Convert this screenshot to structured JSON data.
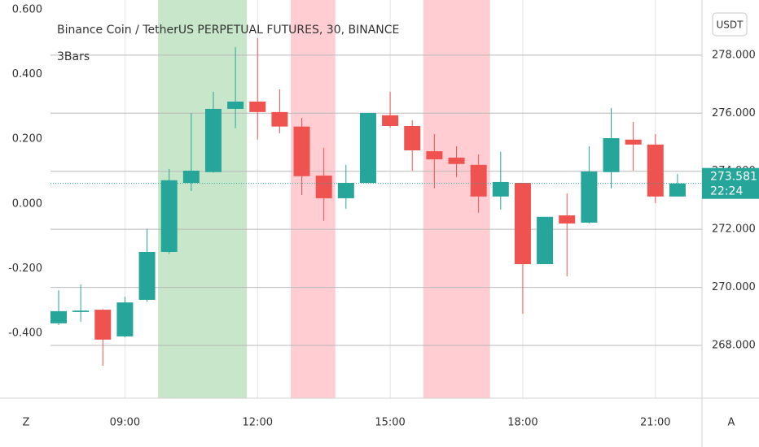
{
  "chart_data": {
    "type": "candlestick",
    "title": "Binance Coin / TetherUS PERPETUAL FUTURES, 30, BINANCE",
    "subtitle": "3Bars",
    "categories": [
      null,
      null,
      null,
      "09:00",
      null,
      null,
      null,
      null,
      null,
      "12:00",
      null,
      null,
      null,
      null,
      null,
      "15:00",
      null,
      null,
      null,
      null,
      null,
      "18:00",
      null,
      null,
      null,
      null,
      null,
      "21:00",
      null
    ],
    "series": [
      {
        "up_color": "#26a69a",
        "down_color": "#ef5350",
        "open": [
          268.76,
          269.15,
          269.23,
          268.31,
          269.57,
          271.22,
          273.6,
          273.97,
          276.15,
          276.4,
          276.04,
          275.54,
          273.85,
          273.07,
          273.6,
          275.93,
          275.56,
          274.69,
          274.47,
          274.22,
          273.13,
          273.6,
          270.8,
          272.48,
          272.23,
          273.97,
          275.09,
          274.92,
          273.13
        ],
        "high": [
          269.9,
          270.1,
          269.25,
          269.68,
          272.01,
          274.08,
          276.01,
          276.74,
          278.28,
          278.59,
          276.82,
          275.84,
          274.81,
          274.22,
          276.01,
          276.74,
          275.76,
          275.28,
          274.86,
          274.58,
          274.67,
          273.6,
          272.43,
          273.24,
          274.86,
          276.18,
          275.7,
          275.28,
          273.91
        ],
        "low": [
          268.7,
          268.81,
          267.3,
          268.28,
          269.5,
          271.15,
          273.32,
          273.95,
          275.48,
          275.09,
          275.31,
          273.18,
          272.29,
          272.71,
          273.6,
          275.5,
          274.02,
          273.41,
          273.8,
          272.57,
          272.68,
          269.09,
          270.8,
          270.38,
          272.2,
          273.41,
          274.02,
          272.9,
          273.13
        ],
        "close": [
          269.18,
          269.2,
          268.2,
          269.48,
          271.22,
          273.69,
          274.02,
          276.15,
          276.4,
          276.04,
          275.54,
          273.83,
          273.07,
          273.6,
          276.01,
          275.56,
          274.72,
          274.41,
          274.25,
          273.13,
          273.63,
          270.8,
          272.43,
          272.2,
          273.99,
          275.14,
          274.92,
          273.13,
          273.58
        ]
      }
    ],
    "bar_backgrounds": [
      null,
      null,
      null,
      null,
      null,
      "#c8e6c9",
      "#c8e6c9",
      "#c8e6c9",
      "#c8e6c9",
      null,
      null,
      "#ffcdd2",
      "#ffcdd2",
      null,
      null,
      null,
      null,
      "#ffcdd2",
      "#ffcdd2",
      "#ffcdd2",
      null,
      null,
      null,
      null,
      null,
      null,
      null,
      null,
      null
    ],
    "ylim": [
      266.18,
      279.9
    ],
    "yticks": [
      {
        "value": 268,
        "label": "268.000"
      },
      {
        "value": 270,
        "label": "270.000"
      },
      {
        "value": 272,
        "label": "272.000"
      },
      {
        "value": 274,
        "label": "274.000"
      },
      {
        "value": 276,
        "label": "276.000"
      },
      {
        "value": 278,
        "label": "278.000"
      }
    ],
    "y2lim": [
      -0.601,
      0.63
    ],
    "y2ticks": [
      {
        "value": -0.4,
        "label": "-0.400"
      },
      {
        "value": -0.2,
        "label": "-0.200"
      },
      {
        "value": 0,
        "label": "0.000"
      },
      {
        "value": 0.2,
        "label": "0.200"
      },
      {
        "value": 0.4,
        "label": "0.400"
      },
      {
        "value": 0.6,
        "label": "0.600"
      }
    ],
    "grid": true,
    "last_price": 273.581,
    "countdown": "22:24",
    "currency_button": "USDT",
    "left_button": "Z",
    "right_button": "A"
  }
}
